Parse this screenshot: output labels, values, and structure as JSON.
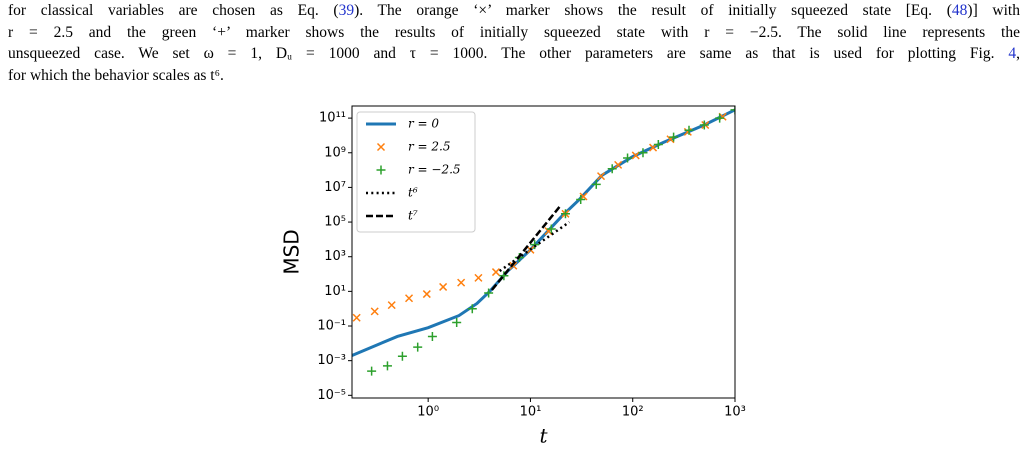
{
  "paragraph": {
    "lines": [
      [
        "for classical variables are chosen as Eq. (",
        "39",
        "). The orange ‘×’ marker shows the result of initially squeezed state [Eq. (",
        "48",
        ")] with"
      ],
      [
        "r = 2.5 and the green ‘+’ marker shows the results of initially squeezed state with r = −2.5. The solid line represents the"
      ],
      [
        "unsqueezed case. We set ω = 1, Dᵤ = 1000 and τ = 1000. The other parameters are same as that is used for plotting Fig. ",
        "4",
        ","
      ],
      [
        "for which the behavior scales as t⁶."
      ]
    ]
  },
  "chart_data": {
    "type": "line",
    "xlabel": "t",
    "ylabel": "MSD",
    "xscale": "log",
    "yscale": "log",
    "xlim": [
      0.18,
      1000
    ],
    "ylim": [
      7e-06,
      500000000000.0
    ],
    "xticks": [
      {
        "value": 1,
        "label": "10⁰"
      },
      {
        "value": 10,
        "label": "10¹"
      },
      {
        "value": 100,
        "label": "10²"
      },
      {
        "value": 1000,
        "label": "10³"
      }
    ],
    "yticks": [
      {
        "value": 1e-05,
        "label": "10⁻⁵"
      },
      {
        "value": 0.001,
        "label": "10⁻³"
      },
      {
        "value": 0.1,
        "label": "10⁻¹"
      },
      {
        "value": 10,
        "label": "10¹"
      },
      {
        "value": 1000,
        "label": "10³"
      },
      {
        "value": 100000.0,
        "label": "10⁵"
      },
      {
        "value": 10000000.0,
        "label": "10⁷"
      },
      {
        "value": 1000000000.0,
        "label": "10⁹"
      },
      {
        "value": 100000000000.0,
        "label": "10¹¹"
      }
    ],
    "legend": "upper left",
    "series": [
      {
        "name": "r = 0",
        "color": "#1f77b4",
        "style": "solid",
        "x": [
          0.18,
          0.5,
          1,
          2,
          3,
          4,
          6,
          10,
          20,
          30,
          50,
          100,
          200,
          500,
          1000
        ],
        "values": [
          0.002,
          0.025,
          0.08,
          0.4,
          2,
          10,
          150,
          2500,
          200000,
          2000000,
          50000000,
          600000000,
          4000000000,
          40000000000,
          300000000000
        ]
      },
      {
        "name": "r = 2.5",
        "color": "#ff7f0e",
        "style": "x",
        "x": [
          0.2,
          0.3,
          0.44,
          0.65,
          0.97,
          1.4,
          2.1,
          3.1,
          4.6,
          6.8,
          10,
          15,
          22,
          33,
          49,
          72,
          107,
          158,
          234,
          346,
          512,
          757
        ],
        "values": [
          0.3,
          0.7,
          1.6,
          4,
          7,
          18,
          32,
          60,
          130,
          300,
          2500,
          30000,
          300000,
          3000000,
          45000000,
          200000000,
          700000000,
          2000000000,
          6000000000,
          16000000000,
          40000000000,
          120000000000
        ]
      },
      {
        "name": "r = −2.5",
        "color": "#2ca02c",
        "style": "+",
        "x": [
          0.28,
          0.4,
          0.56,
          0.79,
          1.1,
          1.9,
          2.7,
          3.9,
          5.5,
          7.8,
          11,
          16,
          22,
          31,
          44,
          63,
          89,
          126,
          178,
          251,
          355,
          501,
          708,
          1000
        ],
        "values": [
          0.00025,
          0.0005,
          0.0018,
          0.006,
          0.025,
          0.16,
          1,
          8,
          80,
          900,
          5000,
          40000,
          300000,
          2000000,
          15000000,
          120000000,
          500000000,
          1000000000,
          3000000000,
          8000000000,
          20000000000,
          40000000000,
          100000000000,
          300000000000
        ]
      },
      {
        "name": "t⁶",
        "color": "#000000",
        "style": "dotted",
        "x": [
          5,
          24
        ],
        "values": [
          150,
          100000
        ]
      },
      {
        "name": "t⁷",
        "color": "#000000",
        "style": "dashed",
        "x": [
          4.2,
          20
        ],
        "values": [
          12,
          1000000
        ]
      }
    ]
  }
}
